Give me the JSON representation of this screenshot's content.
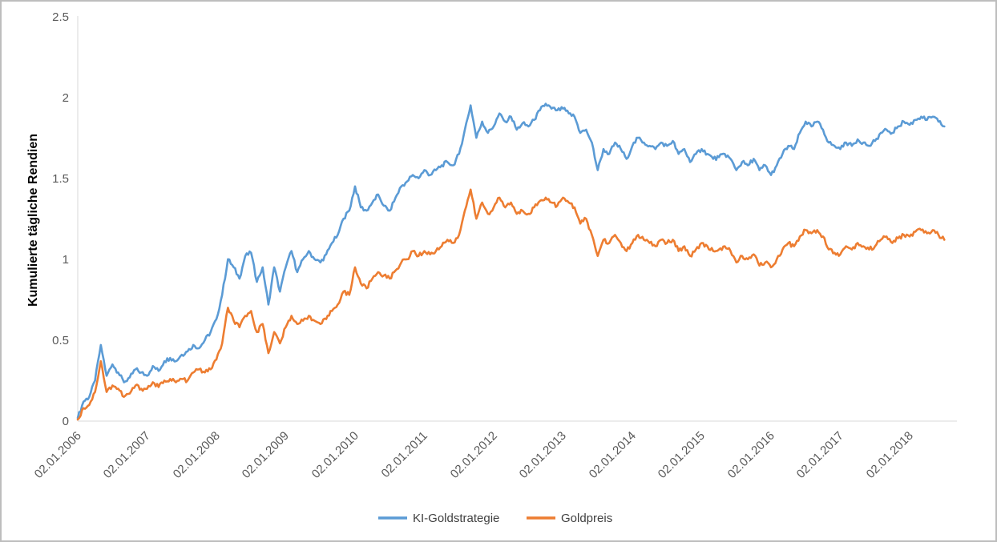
{
  "chart_data": {
    "type": "line",
    "title": "",
    "xlabel": "",
    "ylabel": "Kumulierte tägliche Rendien",
    "ylim": [
      0,
      2.5
    ],
    "grid": false,
    "legend_position": "bottom",
    "x_unit": "months since 2006-01 (daily cumulative return series, monthly estimates)",
    "y_ticks": [
      "0",
      "0.5",
      "1",
      "1.5",
      "2",
      "2.5"
    ],
    "x_ticks": [
      "02.01.2006",
      "02.01.2007",
      "02.01.2008",
      "02.01.2009",
      "02.01.2010",
      "02.01.2011",
      "02.01.2012",
      "02.01.2013",
      "02.01.2014",
      "02.01.2015",
      "02.01.2016",
      "02.01.2017",
      "02.01.2018"
    ],
    "series": [
      {
        "name": "KI-Goldstrategie",
        "color": "#5B9BD5",
        "values": [
          0.02,
          0.12,
          0.15,
          0.25,
          0.47,
          0.28,
          0.35,
          0.3,
          0.24,
          0.27,
          0.32,
          0.3,
          0.28,
          0.34,
          0.31,
          0.37,
          0.39,
          0.37,
          0.41,
          0.43,
          0.47,
          0.45,
          0.5,
          0.55,
          0.63,
          0.78,
          1.0,
          0.95,
          0.88,
          1.02,
          1.04,
          0.86,
          0.95,
          0.72,
          0.95,
          0.8,
          0.95,
          1.05,
          0.92,
          1.0,
          1.05,
          1.0,
          0.98,
          1.03,
          1.1,
          1.15,
          1.25,
          1.3,
          1.45,
          1.32,
          1.3,
          1.35,
          1.4,
          1.33,
          1.3,
          1.38,
          1.45,
          1.48,
          1.52,
          1.5,
          1.55,
          1.52,
          1.55,
          1.58,
          1.6,
          1.58,
          1.65,
          1.8,
          1.95,
          1.75,
          1.85,
          1.78,
          1.82,
          1.9,
          1.85,
          1.88,
          1.8,
          1.84,
          1.82,
          1.86,
          1.92,
          1.96,
          1.93,
          1.92,
          1.93,
          1.9,
          1.88,
          1.78,
          1.8,
          1.72,
          1.55,
          1.68,
          1.65,
          1.72,
          1.68,
          1.62,
          1.7,
          1.75,
          1.72,
          1.7,
          1.68,
          1.72,
          1.7,
          1.73,
          1.65,
          1.68,
          1.6,
          1.65,
          1.68,
          1.65,
          1.62,
          1.63,
          1.65,
          1.62,
          1.55,
          1.6,
          1.58,
          1.62,
          1.55,
          1.58,
          1.52,
          1.58,
          1.65,
          1.7,
          1.68,
          1.78,
          1.85,
          1.82,
          1.85,
          1.8,
          1.72,
          1.7,
          1.68,
          1.72,
          1.7,
          1.74,
          1.72,
          1.7,
          1.73,
          1.78,
          1.8,
          1.78,
          1.82,
          1.85,
          1.83,
          1.86,
          1.88,
          1.86,
          1.88,
          1.85,
          1.82
        ]
      },
      {
        "name": "Goldpreis",
        "color": "#ED7D31",
        "values": [
          0.01,
          0.08,
          0.1,
          0.18,
          0.37,
          0.18,
          0.22,
          0.2,
          0.15,
          0.17,
          0.22,
          0.2,
          0.2,
          0.24,
          0.21,
          0.25,
          0.26,
          0.24,
          0.26,
          0.25,
          0.3,
          0.32,
          0.3,
          0.32,
          0.38,
          0.48,
          0.7,
          0.62,
          0.58,
          0.65,
          0.68,
          0.55,
          0.6,
          0.42,
          0.55,
          0.48,
          0.58,
          0.65,
          0.6,
          0.62,
          0.65,
          0.62,
          0.6,
          0.63,
          0.68,
          0.72,
          0.8,
          0.78,
          0.95,
          0.85,
          0.82,
          0.88,
          0.92,
          0.9,
          0.88,
          0.93,
          0.98,
          1.0,
          1.05,
          1.02,
          1.05,
          1.03,
          1.05,
          1.08,
          1.12,
          1.1,
          1.15,
          1.3,
          1.43,
          1.25,
          1.35,
          1.28,
          1.32,
          1.38,
          1.32,
          1.35,
          1.28,
          1.3,
          1.28,
          1.32,
          1.36,
          1.38,
          1.35,
          1.33,
          1.38,
          1.35,
          1.32,
          1.22,
          1.25,
          1.15,
          1.02,
          1.12,
          1.1,
          1.15,
          1.1,
          1.05,
          1.1,
          1.15,
          1.12,
          1.1,
          1.08,
          1.12,
          1.1,
          1.12,
          1.05,
          1.08,
          1.02,
          1.06,
          1.1,
          1.08,
          1.05,
          1.06,
          1.08,
          1.05,
          0.98,
          1.02,
          1.0,
          1.03,
          0.96,
          0.98,
          0.95,
          1.0,
          1.06,
          1.1,
          1.08,
          1.14,
          1.18,
          1.16,
          1.18,
          1.14,
          1.06,
          1.04,
          1.03,
          1.08,
          1.06,
          1.1,
          1.08,
          1.06,
          1.08,
          1.12,
          1.14,
          1.1,
          1.13,
          1.15,
          1.14,
          1.17,
          1.18,
          1.16,
          1.18,
          1.15,
          1.12
        ]
      }
    ]
  }
}
